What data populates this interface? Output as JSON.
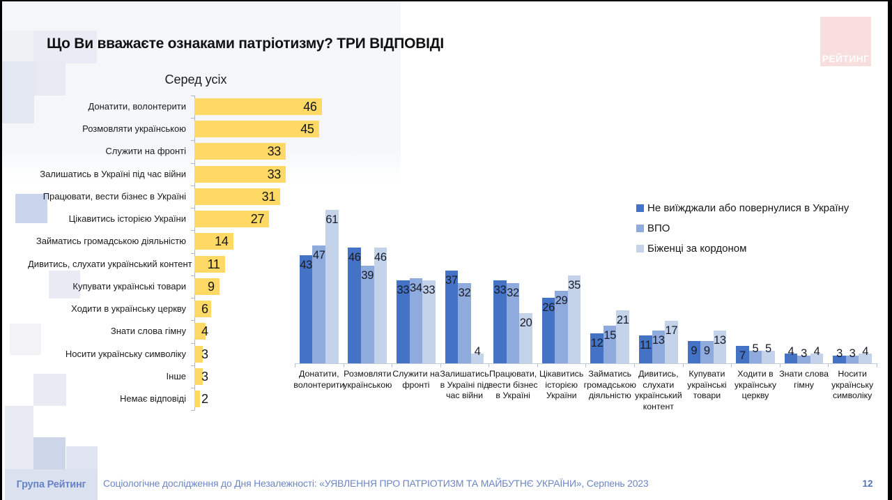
{
  "slide": {
    "title": "Що Ви вважаєте ознаками патріотизму? ТРИ ВІДПОВІДІ",
    "logo_text": "РЕЙТИНГ",
    "page_number": "12",
    "footer": {
      "brand": "Група Рейтинг",
      "source": "Соціологічне дослідження до Дня Незалежності: «УЯВЛЕННЯ ПРО ПАТРІОТИЗМ ТА МАЙБУТНЄ УКРАЇНИ», Серпень 2023"
    }
  },
  "colors": {
    "bar_yellow": "#FFD966",
    "series_dark_blue": "#4472C4",
    "series_medium_blue": "#8FAADC",
    "series_light_blue": "#C5D3EA",
    "footer_text_blue": "#6C86C4",
    "logo_pink": "#F8DEDD"
  },
  "chart_data": [
    {
      "type": "bar",
      "orientation": "horizontal",
      "title": "Серед усіх",
      "categories": [
        "Донатити, волонтерити",
        "Розмовляти українською",
        "Служити на фронті",
        "Залишатись в Україні під час війни",
        "Працювати, вести бізнес в Україні",
        "Цікавитись історією України",
        "Займатись громадською діяльністю",
        "Дивитись, слухати український контент",
        "Купувати українські товари",
        "Ходити в українську церкву",
        "Знати слова гімну",
        "Носити українську символіку",
        "Інше",
        "Немає відповіді"
      ],
      "values": [
        46,
        45,
        33,
        33,
        31,
        27,
        14,
        11,
        9,
        6,
        4,
        3,
        3,
        2
      ],
      "bar_color": "#FFD966",
      "xlim": [
        0,
        50
      ],
      "grid": false,
      "value_labels": "inside-end"
    },
    {
      "type": "bar",
      "orientation": "vertical",
      "title": "",
      "categories": [
        "Донатити,\nволонтерити",
        "Розмовляти\nукраїнською",
        "Служити на\nфронті",
        "Залишатись\nв Україні під\nчас війни",
        "Працювати,\nвести бізнес\nв Україні",
        "Цікавитись\nісторією\nУкраїни",
        "Займатись\nгромадською\nдіяльністю",
        "Дивитись,\nслухати\nукраїнський\nконтент",
        "Купувати\nукраїнські\nтовари",
        "Ходити в\nукраїнську\nцеркву",
        "Знати слова\nгімну",
        "Носити\nукраїнську\nсимволіку"
      ],
      "series": [
        {
          "name": "Не виїжджали або повернулися в Україну",
          "color": "#4472C4",
          "values": [
            43,
            46,
            33,
            37,
            33,
            26,
            12,
            11,
            9,
            7,
            4,
            3
          ]
        },
        {
          "name": "ВПО",
          "color": "#8FAADC",
          "values": [
            47,
            39,
            34,
            32,
            32,
            29,
            15,
            13,
            9,
            5,
            3,
            3
          ]
        },
        {
          "name": "Біженці за кордоном",
          "color": "#C5D3EA",
          "values": [
            61,
            46,
            33,
            4,
            20,
            35,
            21,
            17,
            13,
            5,
            4,
            4
          ]
        }
      ],
      "ylim": [
        0,
        65
      ],
      "grid": false,
      "legend_position": "top-right",
      "value_labels": "inside-end"
    }
  ]
}
